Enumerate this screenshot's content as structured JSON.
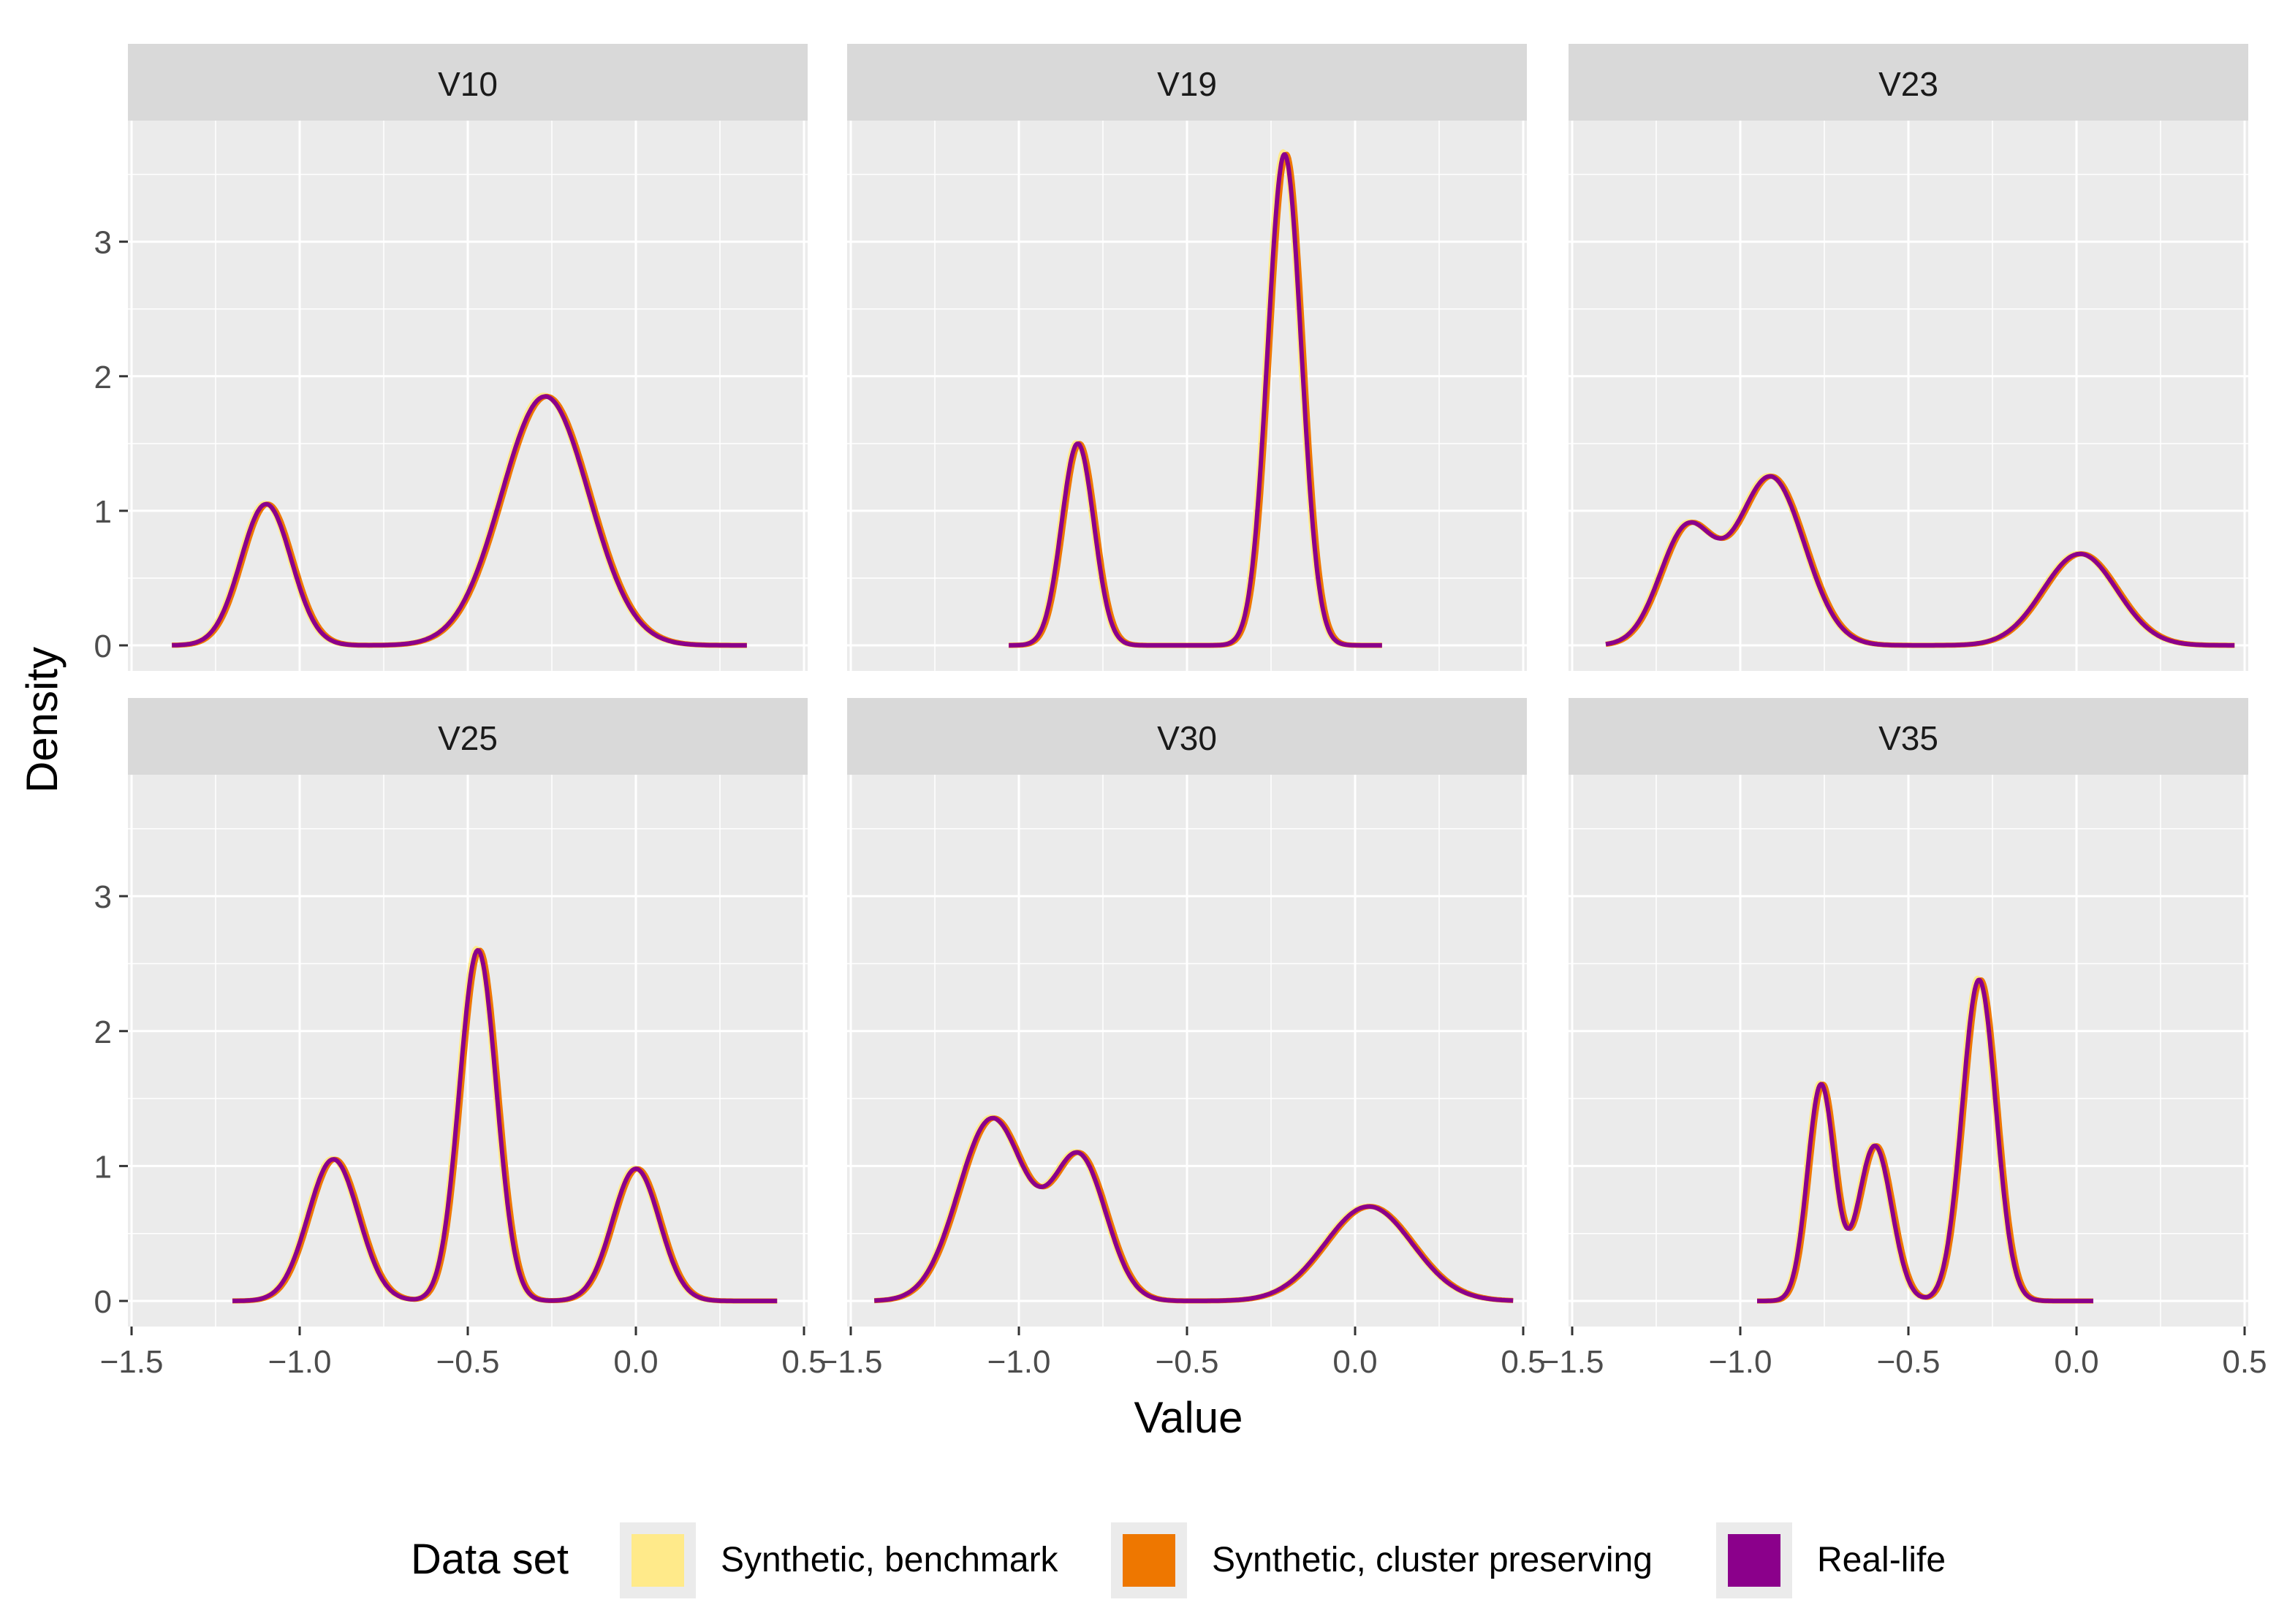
{
  "chart_data": {
    "type": "line",
    "subtype": "faceted density curves",
    "xlabel": "Value",
    "ylabel": "Density",
    "xlim": [
      -1.5,
      0.5
    ],
    "ylim": [
      0,
      3.9
    ],
    "x_ticks": [
      -1.5,
      -1.0,
      -0.5,
      0.0,
      0.5
    ],
    "x_tick_labels": [
      "−1.5",
      "−1.0",
      "−0.5",
      "0.0",
      "0.5"
    ],
    "y_ticks": [
      0,
      1,
      2,
      3
    ],
    "y_tick_labels": [
      "0",
      "1",
      "2",
      "3"
    ],
    "grid": true,
    "legend": {
      "title": "Data set",
      "position": "bottom",
      "entries": [
        {
          "name": "Synthetic, benchmark",
          "color": "#FFEA8A"
        },
        {
          "name": "Synthetic, cluster preserving",
          "color": "#EE7700"
        },
        {
          "name": "Real-life",
          "color": "#8B008B"
        }
      ]
    },
    "panels": [
      {
        "name": "V10",
        "x_range": [
          -1.38,
          0.33
        ],
        "components": [
          {
            "mu": -1.1,
            "sigma": 0.075,
            "peak": 1.05
          },
          {
            "mu": -0.27,
            "sigma": 0.13,
            "peak": 1.85
          }
        ]
      },
      {
        "name": "V19",
        "x_range": [
          -1.03,
          0.08
        ],
        "components": [
          {
            "mu": -0.825,
            "sigma": 0.048,
            "peak": 1.5
          },
          {
            "mu": -0.21,
            "sigma": 0.05,
            "peak": 3.65
          }
        ]
      },
      {
        "name": "V23",
        "x_range": [
          -1.4,
          0.47
        ],
        "components": [
          {
            "mu": -1.16,
            "sigma": 0.08,
            "peak": 0.85
          },
          {
            "mu": -0.91,
            "sigma": 0.1,
            "peak": 1.25
          },
          {
            "mu": 0.01,
            "sigma": 0.11,
            "peak": 0.68
          }
        ]
      },
      {
        "name": "V25",
        "x_range": [
          -1.2,
          0.42
        ],
        "components": [
          {
            "mu": -0.9,
            "sigma": 0.075,
            "peak": 1.05
          },
          {
            "mu": -0.47,
            "sigma": 0.055,
            "peak": 2.6
          },
          {
            "mu": 0.0,
            "sigma": 0.07,
            "peak": 0.98
          }
        ]
      },
      {
        "name": "V30",
        "x_range": [
          -1.43,
          0.47
        ],
        "components": [
          {
            "mu": -1.08,
            "sigma": 0.1,
            "peak": 1.35
          },
          {
            "mu": -0.82,
            "sigma": 0.08,
            "peak": 1.05
          },
          {
            "mu": 0.04,
            "sigma": 0.13,
            "peak": 0.7
          }
        ]
      },
      {
        "name": "V35",
        "x_range": [
          -0.95,
          0.05
        ],
        "components": [
          {
            "mu": -0.76,
            "sigma": 0.04,
            "peak": 1.6
          },
          {
            "mu": -0.6,
            "sigma": 0.05,
            "peak": 1.15
          },
          {
            "mu": -0.29,
            "sigma": 0.05,
            "peak": 2.38
          }
        ]
      }
    ]
  }
}
